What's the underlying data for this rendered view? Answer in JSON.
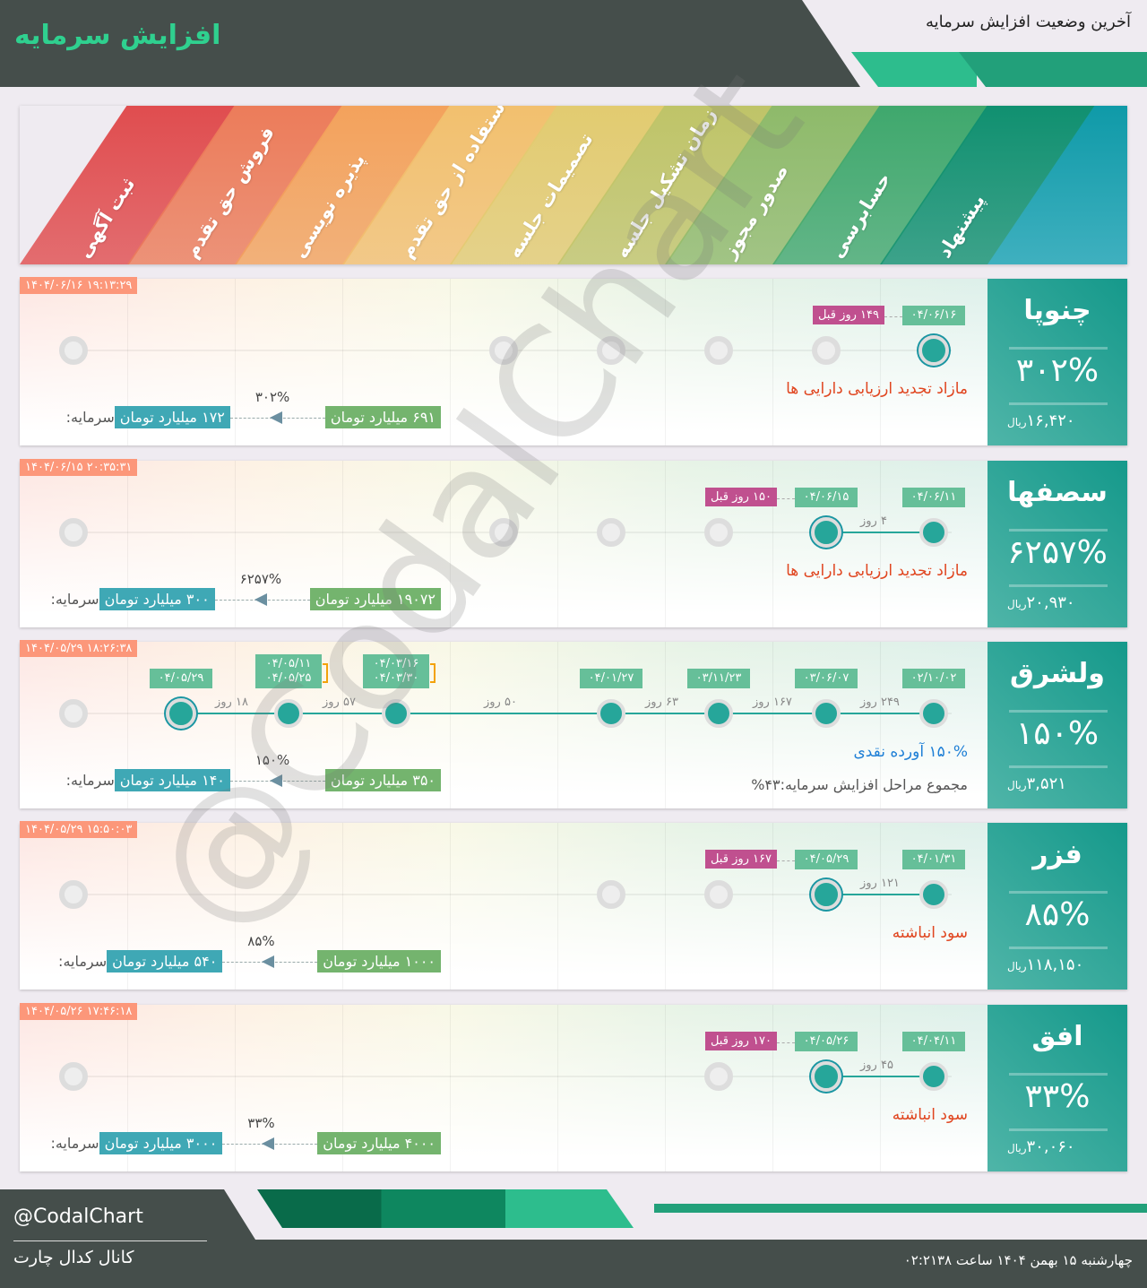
{
  "header": {
    "title": "افزایش سرمایه",
    "subtitle": "آخرین وضعیت افزایش سرمایه"
  },
  "colors": {
    "brand": "#2fd08f",
    "dark": "#454e4b",
    "teal": "#26a69a",
    "date_box": "#66bf99",
    "ago_box": "#c0508f",
    "timestamp_box": "#fc977a",
    "capital_from": "#3fa8b5",
    "capital_to": "#74b46e"
  },
  "stages": [
    {
      "label": "ثبت آگهی",
      "color": "#e04d4f"
    },
    {
      "label": "فروش حق تقدم",
      "color": "#ec7c5a"
    },
    {
      "label": "پذیره نویسی",
      "color": "#f3a25c"
    },
    {
      "label": "استفاده از حق تقدم",
      "color": "#f2c06e"
    },
    {
      "label": "تصمیمات جلسه",
      "color": "#e2cb70"
    },
    {
      "label": "زمان تشکیل جلسه",
      "color": "#bfc468"
    },
    {
      "label": "صدور مجوز",
      "color": "#8eba6a"
    },
    {
      "label": "حسابرسی",
      "color": "#3fa86d"
    },
    {
      "label": "پیشنهاد",
      "color": "#109070"
    }
  ],
  "capital_label": "سرمایه:",
  "price_unit": "ریال",
  "rows": [
    {
      "symbol": "چنوپا",
      "percent": "۳۰۲%",
      "price": "۱۶,۴۲۰",
      "timestamp": "۱۴۰۴/۰۶/۱۶ ۱۹:۱۳:۲۹",
      "nodes": [
        "e",
        "",
        "",
        "",
        "e",
        "e",
        "e",
        "e",
        "c"
      ],
      "dates": [
        {
          "col": 8,
          "lines": [
            "۰۴/۰۶/۱۶"
          ]
        }
      ],
      "ago": "۱۴۹ روز قبل",
      "ago_col": 8,
      "gaps": [],
      "type": "مازاد تجدید ارزیابی دارایی ها",
      "type_color": "#e0451f",
      "extra": "",
      "from": "۱۷۲ میلیارد تومان",
      "to": "۶۹۱ میلیارد تومان",
      "increase": "۳۰۲%"
    },
    {
      "symbol": "سصفها",
      "percent": "۶۲۵۷%",
      "price": "۲۰,۹۳۰",
      "timestamp": "۱۴۰۴/۰۶/۱۵ ۲۰:۳۵:۳۱",
      "nodes": [
        "e",
        "",
        "",
        "",
        "e",
        "e",
        "e",
        "c",
        "d"
      ],
      "dates": [
        {
          "col": 8,
          "lines": [
            "۰۴/۰۶/۱۱"
          ]
        },
        {
          "col": 7,
          "lines": [
            "۰۴/۰۶/۱۵"
          ]
        }
      ],
      "ago": "۱۵۰ روز قبل",
      "ago_col": 7,
      "gaps": [
        {
          "a": 7,
          "b": 8,
          "text": "۴ روز"
        }
      ],
      "type": "مازاد تجدید ارزیابی دارایی ها",
      "type_color": "#e0451f",
      "extra": "",
      "from": "۳۰۰ میلیارد تومان",
      "to": "۱۹۰۷۲ میلیارد تومان",
      "increase": "۶۲۵۷%"
    },
    {
      "symbol": "ولشرق",
      "percent": "۱۵۰%",
      "price": "۳,۵۲۱",
      "timestamp": "۱۴۰۴/۰۵/۲۹ ۱۸:۲۶:۳۸",
      "nodes": [
        "e",
        "c",
        "d",
        "d",
        "",
        "d",
        "d",
        "d",
        "d"
      ],
      "dates": [
        {
          "col": 8,
          "lines": [
            "۰۲/۱۰/۰۲"
          ]
        },
        {
          "col": 7,
          "lines": [
            "۰۳/۰۶/۰۷"
          ]
        },
        {
          "col": 6,
          "lines": [
            "۰۳/۱۱/۲۳"
          ]
        },
        {
          "col": 5,
          "lines": [
            "۰۴/۰۱/۲۷"
          ]
        },
        {
          "col": 3,
          "lines": [
            "۰۴/۰۳/۱۶",
            "۰۴/۰۳/۳۰"
          ]
        },
        {
          "col": 2,
          "lines": [
            "۰۴/۰۵/۱۱",
            "۰۴/۰۵/۲۵"
          ]
        },
        {
          "col": 1,
          "lines": [
            "۰۴/۰۵/۲۹"
          ]
        }
      ],
      "ago": "",
      "ago_col": 1,
      "gaps": [
        {
          "a": 7,
          "b": 8,
          "text": "۲۴۹ روز"
        },
        {
          "a": 6,
          "b": 7,
          "text": "۱۶۷ روز"
        },
        {
          "a": 5,
          "b": 6,
          "text": "۶۳ روز"
        },
        {
          "a": 3,
          "b": 5,
          "text": "۵۰ روز"
        },
        {
          "a": 2,
          "b": 3,
          "text": "۵۷ روز"
        },
        {
          "a": 1,
          "b": 2,
          "text": "۱۸ روز"
        }
      ],
      "type": "۱۵۰% آورده نقدی",
      "type_color": "#1e7fd6",
      "extra": "مجموع مراحل افزایش سرمایه:۴۳%",
      "from": "۱۴۰ میلیارد تومان",
      "to": "۳۵۰ میلیارد تومان",
      "increase": "۱۵۰%"
    },
    {
      "symbol": "فزر",
      "percent": "۸۵%",
      "price": "۱۱۸,۱۵۰",
      "timestamp": "۱۴۰۴/۰۵/۲۹ ۱۵:۵۰:۰۳",
      "nodes": [
        "e",
        "",
        "",
        "",
        "",
        "e",
        "e",
        "c",
        "d"
      ],
      "dates": [
        {
          "col": 8,
          "lines": [
            "۰۴/۰۱/۳۱"
          ]
        },
        {
          "col": 7,
          "lines": [
            "۰۴/۰۵/۲۹"
          ]
        }
      ],
      "ago": "۱۶۷ روز قبل",
      "ago_col": 7,
      "gaps": [
        {
          "a": 7,
          "b": 8,
          "text": "۱۲۱ روز"
        }
      ],
      "type": "سود انباشته",
      "type_color": "#e0451f",
      "extra": "",
      "from": "۵۴۰ میلیارد تومان",
      "to": "۱۰۰۰ میلیارد تومان",
      "increase": "۸۵%"
    },
    {
      "symbol": "افق",
      "percent": "۳۳%",
      "price": "۳۰,۰۶۰",
      "timestamp": "۱۴۰۴/۰۵/۲۶ ۱۷:۴۶:۱۸",
      "nodes": [
        "e",
        "",
        "",
        "",
        "",
        "",
        "e",
        "c",
        "d"
      ],
      "dates": [
        {
          "col": 8,
          "lines": [
            "۰۴/۰۴/۱۱"
          ]
        },
        {
          "col": 7,
          "lines": [
            "۰۴/۰۵/۲۶"
          ]
        }
      ],
      "ago": "۱۷۰ روز قبل",
      "ago_col": 7,
      "gaps": [
        {
          "a": 7,
          "b": 8,
          "text": "۴۵ روز"
        }
      ],
      "type": "سود انباشته",
      "type_color": "#e0451f",
      "extra": "",
      "from": "۳۰۰۰ میلیارد تومان",
      "to": "۴۰۰۰ میلیارد تومان",
      "increase": "۳۳%"
    }
  ],
  "watermark": "@CodalChart",
  "footer": {
    "handle": "@CodalChart",
    "channel": "کانال کدال چارت",
    "datetime": "چهارشنبه ۱۵ بهمن ۱۴۰۴ ساعت ۰۲:۲۱۳۸"
  }
}
